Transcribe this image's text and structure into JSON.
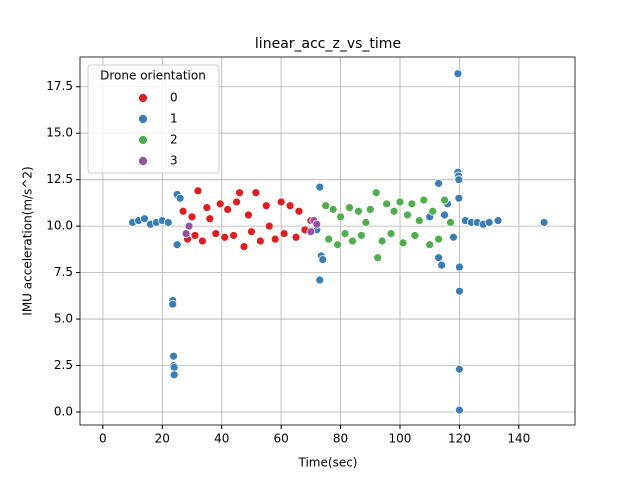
{
  "chart_data": {
    "type": "scatter",
    "title": "linear_acc_z_vs_time",
    "x_label": "Time(sec)",
    "y_label": "IMU acceleration(m/s^2)",
    "xlim": [
      -7.7,
      158.9
    ],
    "ylim": [
      -0.7,
      19.1
    ],
    "xticks": [
      0,
      20,
      40,
      60,
      80,
      100,
      120,
      140
    ],
    "yticks": [
      {
        "value": 0,
        "label": "0.0"
      },
      2.5,
      {
        "value": 5,
        "label": "5.0"
      },
      7.5,
      {
        "value": 10,
        "label": "10.0"
      },
      12.5,
      {
        "value": 15,
        "label": "15.0"
      },
      17.5
    ],
    "grid": true,
    "legend": "upper left",
    "legend_title": "Drone orientation",
    "series": [
      {
        "name": "0",
        "color": "#e41a1c",
        "x": [
          27,
          28.5,
          30,
          31,
          32,
          33.5,
          35,
          36,
          38,
          39.5,
          41,
          42,
          44,
          45,
          46,
          47.5,
          49,
          50,
          51.5,
          53,
          55,
          56,
          58,
          60,
          61,
          63,
          65,
          66,
          68,
          70
        ],
        "values": [
          10.8,
          9.3,
          10.5,
          9.5,
          11.9,
          9.2,
          11.0,
          10.4,
          9.6,
          11.2,
          9.4,
          10.9,
          9.5,
          11.3,
          11.8,
          8.9,
          10.6,
          9.7,
          11.8,
          9.2,
          11.1,
          10.0,
          9.3,
          11.3,
          9.6,
          11.1,
          9.4,
          10.8,
          9.8,
          10.3
        ]
      },
      {
        "name": "1",
        "color": "#377eb8",
        "x": [
          10,
          12,
          14,
          16,
          18,
          20,
          22,
          23.5,
          23.5,
          23.8,
          23.8,
          24,
          24,
          25,
          25,
          26,
          72,
          73,
          73,
          73.5,
          74,
          110,
          113,
          113,
          114,
          115,
          116,
          118,
          119.5,
          119.5,
          119.7,
          119.8,
          119.8,
          120,
          120,
          120,
          120,
          122,
          124,
          126,
          128,
          130,
          133,
          148.5
        ],
        "values": [
          10.2,
          10.3,
          10.4,
          10.1,
          10.2,
          10.3,
          10.2,
          6.0,
          5.8,
          3.0,
          2.5,
          2.4,
          2.0,
          11.7,
          9.0,
          11.5,
          9.8,
          12.1,
          7.1,
          8.4,
          8.2,
          10.5,
          12.3,
          8.3,
          7.9,
          10.6,
          11.2,
          9.4,
          18.2,
          12.9,
          12.7,
          12.5,
          11.5,
          6.5,
          2.3,
          0.1,
          7.8,
          10.3,
          10.2,
          10.2,
          10.1,
          10.2,
          10.3,
          10.2
        ]
      },
      {
        "name": "2",
        "color": "#4daf4a",
        "x": [
          75,
          76,
          77.5,
          79,
          80,
          81.5,
          83,
          84,
          86,
          87,
          88.5,
          90,
          92,
          92.5,
          94,
          95.5,
          97,
          98,
          100,
          101,
          102.5,
          104,
          105,
          106.5,
          108,
          110,
          111,
          113,
          115,
          117
        ],
        "values": [
          11.1,
          9.3,
          10.9,
          9.0,
          10.5,
          9.6,
          11.0,
          9.2,
          10.8,
          9.5,
          10.2,
          10.9,
          11.8,
          8.3,
          9.2,
          11.2,
          9.6,
          10.8,
          11.3,
          9.1,
          10.6,
          11.2,
          9.5,
          10.3,
          11.4,
          9.0,
          10.8,
          9.3,
          11.4,
          10.2
        ]
      },
      {
        "name": "3",
        "color": "#984ea3",
        "x": [
          28,
          29,
          70,
          71,
          72
        ],
        "values": [
          9.6,
          10.0,
          9.7,
          10.3,
          10.1
        ]
      }
    ]
  }
}
